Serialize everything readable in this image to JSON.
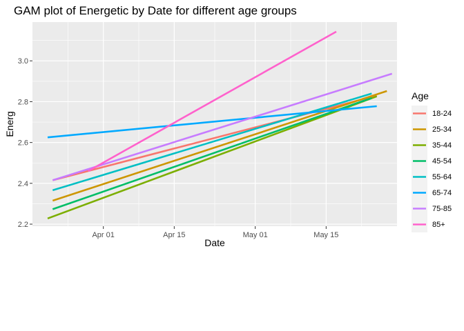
{
  "chart_data": {
    "type": "line",
    "title": "GAM plot of Energetic by Date for different age groups",
    "xlabel": "Date",
    "ylabel": "Energ",
    "x_type": "date",
    "xlim": [
      "2021-03-18",
      "2021-05-29"
    ],
    "ylim": [
      2.19,
      3.19
    ],
    "x_ticks": [
      {
        "value": "2021-04-01",
        "label": "Apr 01"
      },
      {
        "value": "2021-04-15",
        "label": "Apr 15"
      },
      {
        "value": "2021-05-01",
        "label": "May 01"
      },
      {
        "value": "2021-05-15",
        "label": "May 15"
      }
    ],
    "y_ticks": [
      {
        "value": 2.2,
        "label": "2.2"
      },
      {
        "value": 2.4,
        "label": "2.4"
      },
      {
        "value": 2.6,
        "label": "2.6"
      },
      {
        "value": 2.8,
        "label": "2.8"
      },
      {
        "value": 3.0,
        "label": "3.0"
      }
    ],
    "grid": true,
    "legend": {
      "title": "Age",
      "position": "right"
    },
    "series": [
      {
        "name": "18-24",
        "color": "#F8766D",
        "x": [
          "2021-03-22",
          "2021-05-25"
        ],
        "y": [
          2.415,
          2.83
        ]
      },
      {
        "name": "25-34",
        "color": "#CD9600",
        "x": [
          "2021-03-22",
          "2021-05-27"
        ],
        "y": [
          2.315,
          2.852
        ]
      },
      {
        "name": "35-44",
        "color": "#7CAE00",
        "x": [
          "2021-03-21",
          "2021-05-25"
        ],
        "y": [
          2.228,
          2.826
        ]
      },
      {
        "name": "45-54",
        "color": "#00BE67",
        "x": [
          "2021-03-22",
          "2021-05-24"
        ],
        "y": [
          2.273,
          2.818
        ]
      },
      {
        "name": "55-64",
        "color": "#00BFC4",
        "x": [
          "2021-03-22",
          "2021-05-24"
        ],
        "y": [
          2.366,
          2.84
        ]
      },
      {
        "name": "65-74",
        "color": "#00A9FF",
        "x": [
          "2021-03-21",
          "2021-05-25"
        ],
        "y": [
          2.625,
          2.778
        ]
      },
      {
        "name": "75-85",
        "color": "#C77CFF",
        "x": [
          "2021-03-22",
          "2021-05-28"
        ],
        "y": [
          2.415,
          2.937
        ]
      },
      {
        "name": "85+",
        "color": "#FF61CC",
        "x": [
          "2021-03-29",
          "2021-05-17"
        ],
        "y": [
          2.46,
          3.143
        ]
      }
    ]
  }
}
